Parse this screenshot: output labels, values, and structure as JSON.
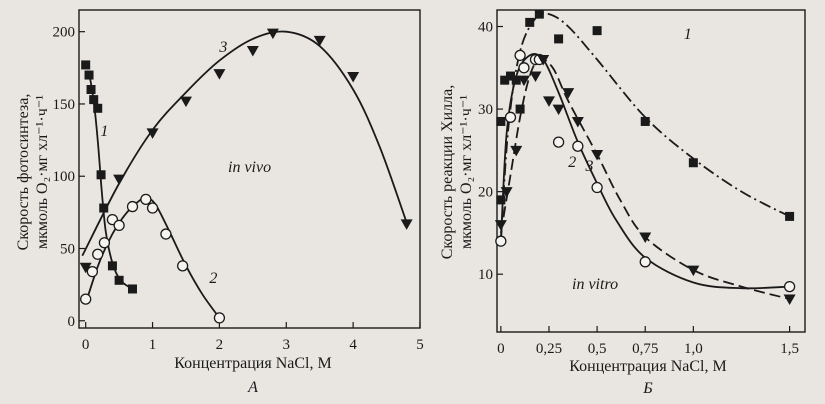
{
  "chart_data": [
    {
      "type": "scatter",
      "panel_label": "А",
      "annotation": "in vivo",
      "xlabel": "Концентрация NaCl,  М",
      "ylabel_lines": [
        "Скорость фотосинтеза,",
        "мкмоль О₂·мг хл⁻¹·ч⁻¹"
      ],
      "xlim": [
        -0.1,
        5
      ],
      "ylim": [
        -5,
        215
      ],
      "x_ticks": [
        0,
        1,
        2,
        3,
        4,
        5
      ],
      "y_ticks": [
        0,
        50,
        100,
        150,
        200
      ],
      "series": [
        {
          "name": "1",
          "marker": "square",
          "points": [
            [
              0.0,
              177
            ],
            [
              0.05,
              170
            ],
            [
              0.08,
              160
            ],
            [
              0.12,
              153
            ],
            [
              0.18,
              147
            ],
            [
              0.23,
              101
            ],
            [
              0.27,
              78
            ],
            [
              0.4,
              38
            ],
            [
              0.5,
              28
            ],
            [
              0.7,
              22
            ]
          ],
          "curve": [
            [
              0.05,
              172
            ],
            [
              0.12,
              152
            ],
            [
              0.18,
              125
            ],
            [
              0.24,
              90
            ],
            [
              0.3,
              62
            ],
            [
              0.4,
              40
            ],
            [
              0.52,
              28
            ],
            [
              0.7,
              22
            ]
          ]
        },
        {
          "name": "2",
          "marker": "circle",
          "points": [
            [
              0.0,
              15
            ],
            [
              0.1,
              34
            ],
            [
              0.18,
              46
            ],
            [
              0.28,
              54
            ],
            [
              0.4,
              70
            ],
            [
              0.5,
              66
            ],
            [
              0.7,
              79
            ],
            [
              0.9,
              84
            ],
            [
              1.0,
              78
            ],
            [
              1.2,
              60
            ],
            [
              1.45,
              38
            ],
            [
              2.0,
              2
            ]
          ],
          "curve": [
            [
              0.0,
              12
            ],
            [
              0.2,
              40
            ],
            [
              0.4,
              60
            ],
            [
              0.6,
              74
            ],
            [
              0.8,
              83
            ],
            [
              0.92,
              85
            ],
            [
              1.05,
              80
            ],
            [
              1.25,
              62
            ],
            [
              1.5,
              38
            ],
            [
              1.75,
              18
            ],
            [
              2.0,
              2
            ]
          ]
        },
        {
          "name": "3",
          "marker": "triangle-down",
          "points": [
            [
              0.0,
              37
            ],
            [
              0.5,
              98
            ],
            [
              1.0,
              130
            ],
            [
              1.5,
              152
            ],
            [
              2.0,
              171
            ],
            [
              2.5,
              187
            ],
            [
              2.8,
              199
            ],
            [
              3.5,
              194
            ],
            [
              4.0,
              169
            ],
            [
              4.8,
              67
            ]
          ],
          "curve": [
            [
              -0.05,
              45
            ],
            [
              0.5,
              95
            ],
            [
              1.0,
              132
            ],
            [
              1.5,
              158
            ],
            [
              2.0,
              180
            ],
            [
              2.5,
              195
            ],
            [
              3.0,
              200
            ],
            [
              3.5,
              190
            ],
            [
              4.0,
              160
            ],
            [
              4.4,
              120
            ],
            [
              4.8,
              68
            ]
          ]
        }
      ]
    },
    {
      "type": "scatter",
      "panel_label": "Б",
      "annotation": "in vitro",
      "xlabel": "Концентрация NaCl,  М",
      "ylabel_lines": [
        "Скорость реакции Хилла,",
        "мкмоль О₂·мг хл⁻¹·ч⁻¹"
      ],
      "xlim": [
        -0.02,
        1.58
      ],
      "ylim": [
        3,
        42
      ],
      "x_ticks": [
        0,
        0.25,
        0.5,
        0.75,
        1.0,
        1.5
      ],
      "x_tick_labels": [
        "0",
        "0,25",
        "0,5",
        "0,75",
        "1,0",
        "1,5"
      ],
      "y_ticks": [
        10,
        20,
        30,
        40
      ],
      "series": [
        {
          "name": "1",
          "marker": "square",
          "line": "dash-dot",
          "points": [
            [
              0.0,
              19
            ],
            [
              0.0,
              28.5
            ],
            [
              0.02,
              33.5
            ],
            [
              0.05,
              34
            ],
            [
              0.08,
              33.5
            ],
            [
              0.1,
              30
            ],
            [
              0.15,
              40.5
            ],
            [
              0.2,
              41.5
            ],
            [
              0.3,
              38.5
            ],
            [
              0.5,
              39.5
            ],
            [
              0.75,
              28.5
            ],
            [
              1.0,
              23.5
            ],
            [
              1.5,
              17
            ]
          ],
          "curve": [
            [
              0.0,
              14
            ],
            [
              0.04,
              28
            ],
            [
              0.1,
              37
            ],
            [
              0.18,
              41
            ],
            [
              0.25,
              41.5
            ],
            [
              0.35,
              40
            ],
            [
              0.5,
              36
            ],
            [
              0.75,
              29
            ],
            [
              1.0,
              24
            ],
            [
              1.25,
              20
            ],
            [
              1.5,
              17
            ]
          ]
        },
        {
          "name": "2",
          "marker": "circle",
          "line": "solid",
          "points": [
            [
              0.0,
              14
            ],
            [
              0.05,
              29
            ],
            [
              0.1,
              36.5
            ],
            [
              0.12,
              35
            ],
            [
              0.18,
              36
            ],
            [
              0.2,
              36
            ],
            [
              0.3,
              26
            ],
            [
              0.4,
              25.5
            ],
            [
              0.5,
              20.5
            ],
            [
              0.75,
              11.5
            ],
            [
              1.5,
              8.5
            ]
          ],
          "curve": [
            [
              0.0,
              14
            ],
            [
              0.03,
              27
            ],
            [
              0.08,
              34
            ],
            [
              0.15,
              36.5
            ],
            [
              0.22,
              36
            ],
            [
              0.3,
              32
            ],
            [
              0.4,
              26
            ],
            [
              0.5,
              21
            ],
            [
              0.6,
              16.5
            ],
            [
              0.75,
              12
            ],
            [
              1.0,
              9
            ],
            [
              1.25,
              8.3
            ],
            [
              1.5,
              8.5
            ]
          ]
        },
        {
          "name": "3",
          "marker": "triangle-down",
          "line": "dashed",
          "points": [
            [
              0.0,
              16
            ],
            [
              0.03,
              20
            ],
            [
              0.08,
              25
            ],
            [
              0.12,
              33.5
            ],
            [
              0.18,
              34
            ],
            [
              0.22,
              36
            ],
            [
              0.25,
              31
            ],
            [
              0.3,
              30
            ],
            [
              0.35,
              32
            ],
            [
              0.4,
              28.5
            ],
            [
              0.5,
              24.5
            ],
            [
              0.75,
              14.5
            ],
            [
              1.0,
              10.5
            ],
            [
              1.5,
              7
            ]
          ],
          "curve": [
            [
              0.0,
              15
            ],
            [
              0.05,
              22
            ],
            [
              0.1,
              29
            ],
            [
              0.15,
              34
            ],
            [
              0.2,
              36
            ],
            [
              0.27,
              35
            ],
            [
              0.35,
              31
            ],
            [
              0.5,
              24.5
            ],
            [
              0.62,
              19
            ],
            [
              0.75,
              14.5
            ],
            [
              1.0,
              10.5
            ],
            [
              1.25,
              8.5
            ],
            [
              1.5,
              7
            ]
          ]
        }
      ]
    }
  ]
}
